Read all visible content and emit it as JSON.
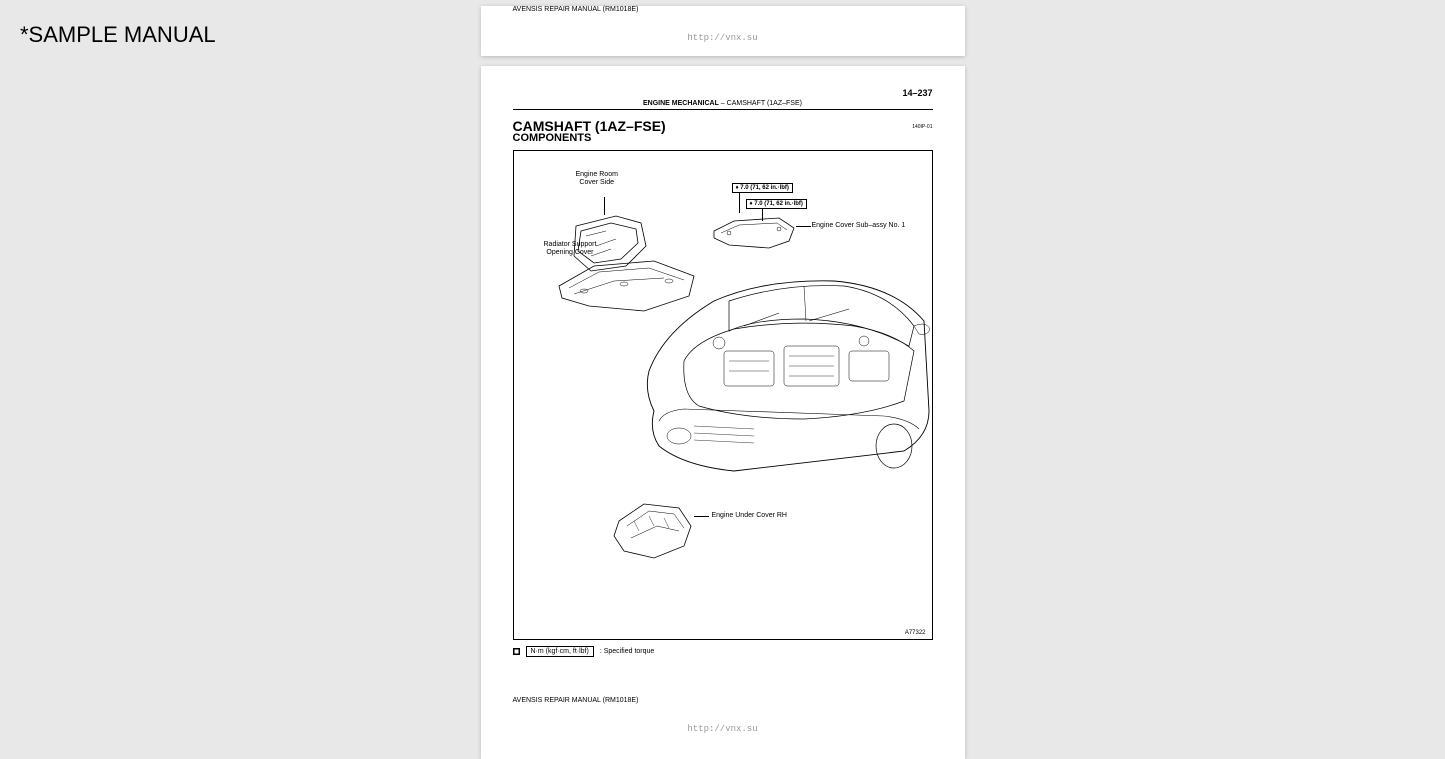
{
  "watermark": "*SAMPLE MANUAL",
  "footer_manual": "AVENSIS REPAIR MANUAL   (RM1018E)",
  "footer_url": "http://vnx.su",
  "page_number": "14–237",
  "section_line_bold": "ENGINE MECHANICAL",
  "section_line_rest": "    –     CAMSHAFT (1AZ–FSE)",
  "title": "CAMSHAFT (1AZ–FSE)",
  "subtitle": "COMPONENTS",
  "doc_code": "140IP-01",
  "labels": {
    "engine_room_cover": "Engine Room\nCover Side",
    "radiator_support": "Radiator Support\nOpening Cover",
    "engine_cover_sub": "Engine Cover Sub–assy No. 1",
    "engine_under_cover": "Engine Under Cover RH",
    "torque1": "7.0 (71, 62 in.·lbf)",
    "torque2": "7.0 (71, 62 in.·lbf)"
  },
  "legend": {
    "box_text": "N·m (kgf·cm, ft·lbf)",
    "label": ": Specified torque"
  },
  "diagram_ref": "A77322",
  "colors": {
    "background": "#e8e8e8",
    "page": "#ffffff",
    "line": "#000000",
    "url": "#999999"
  }
}
